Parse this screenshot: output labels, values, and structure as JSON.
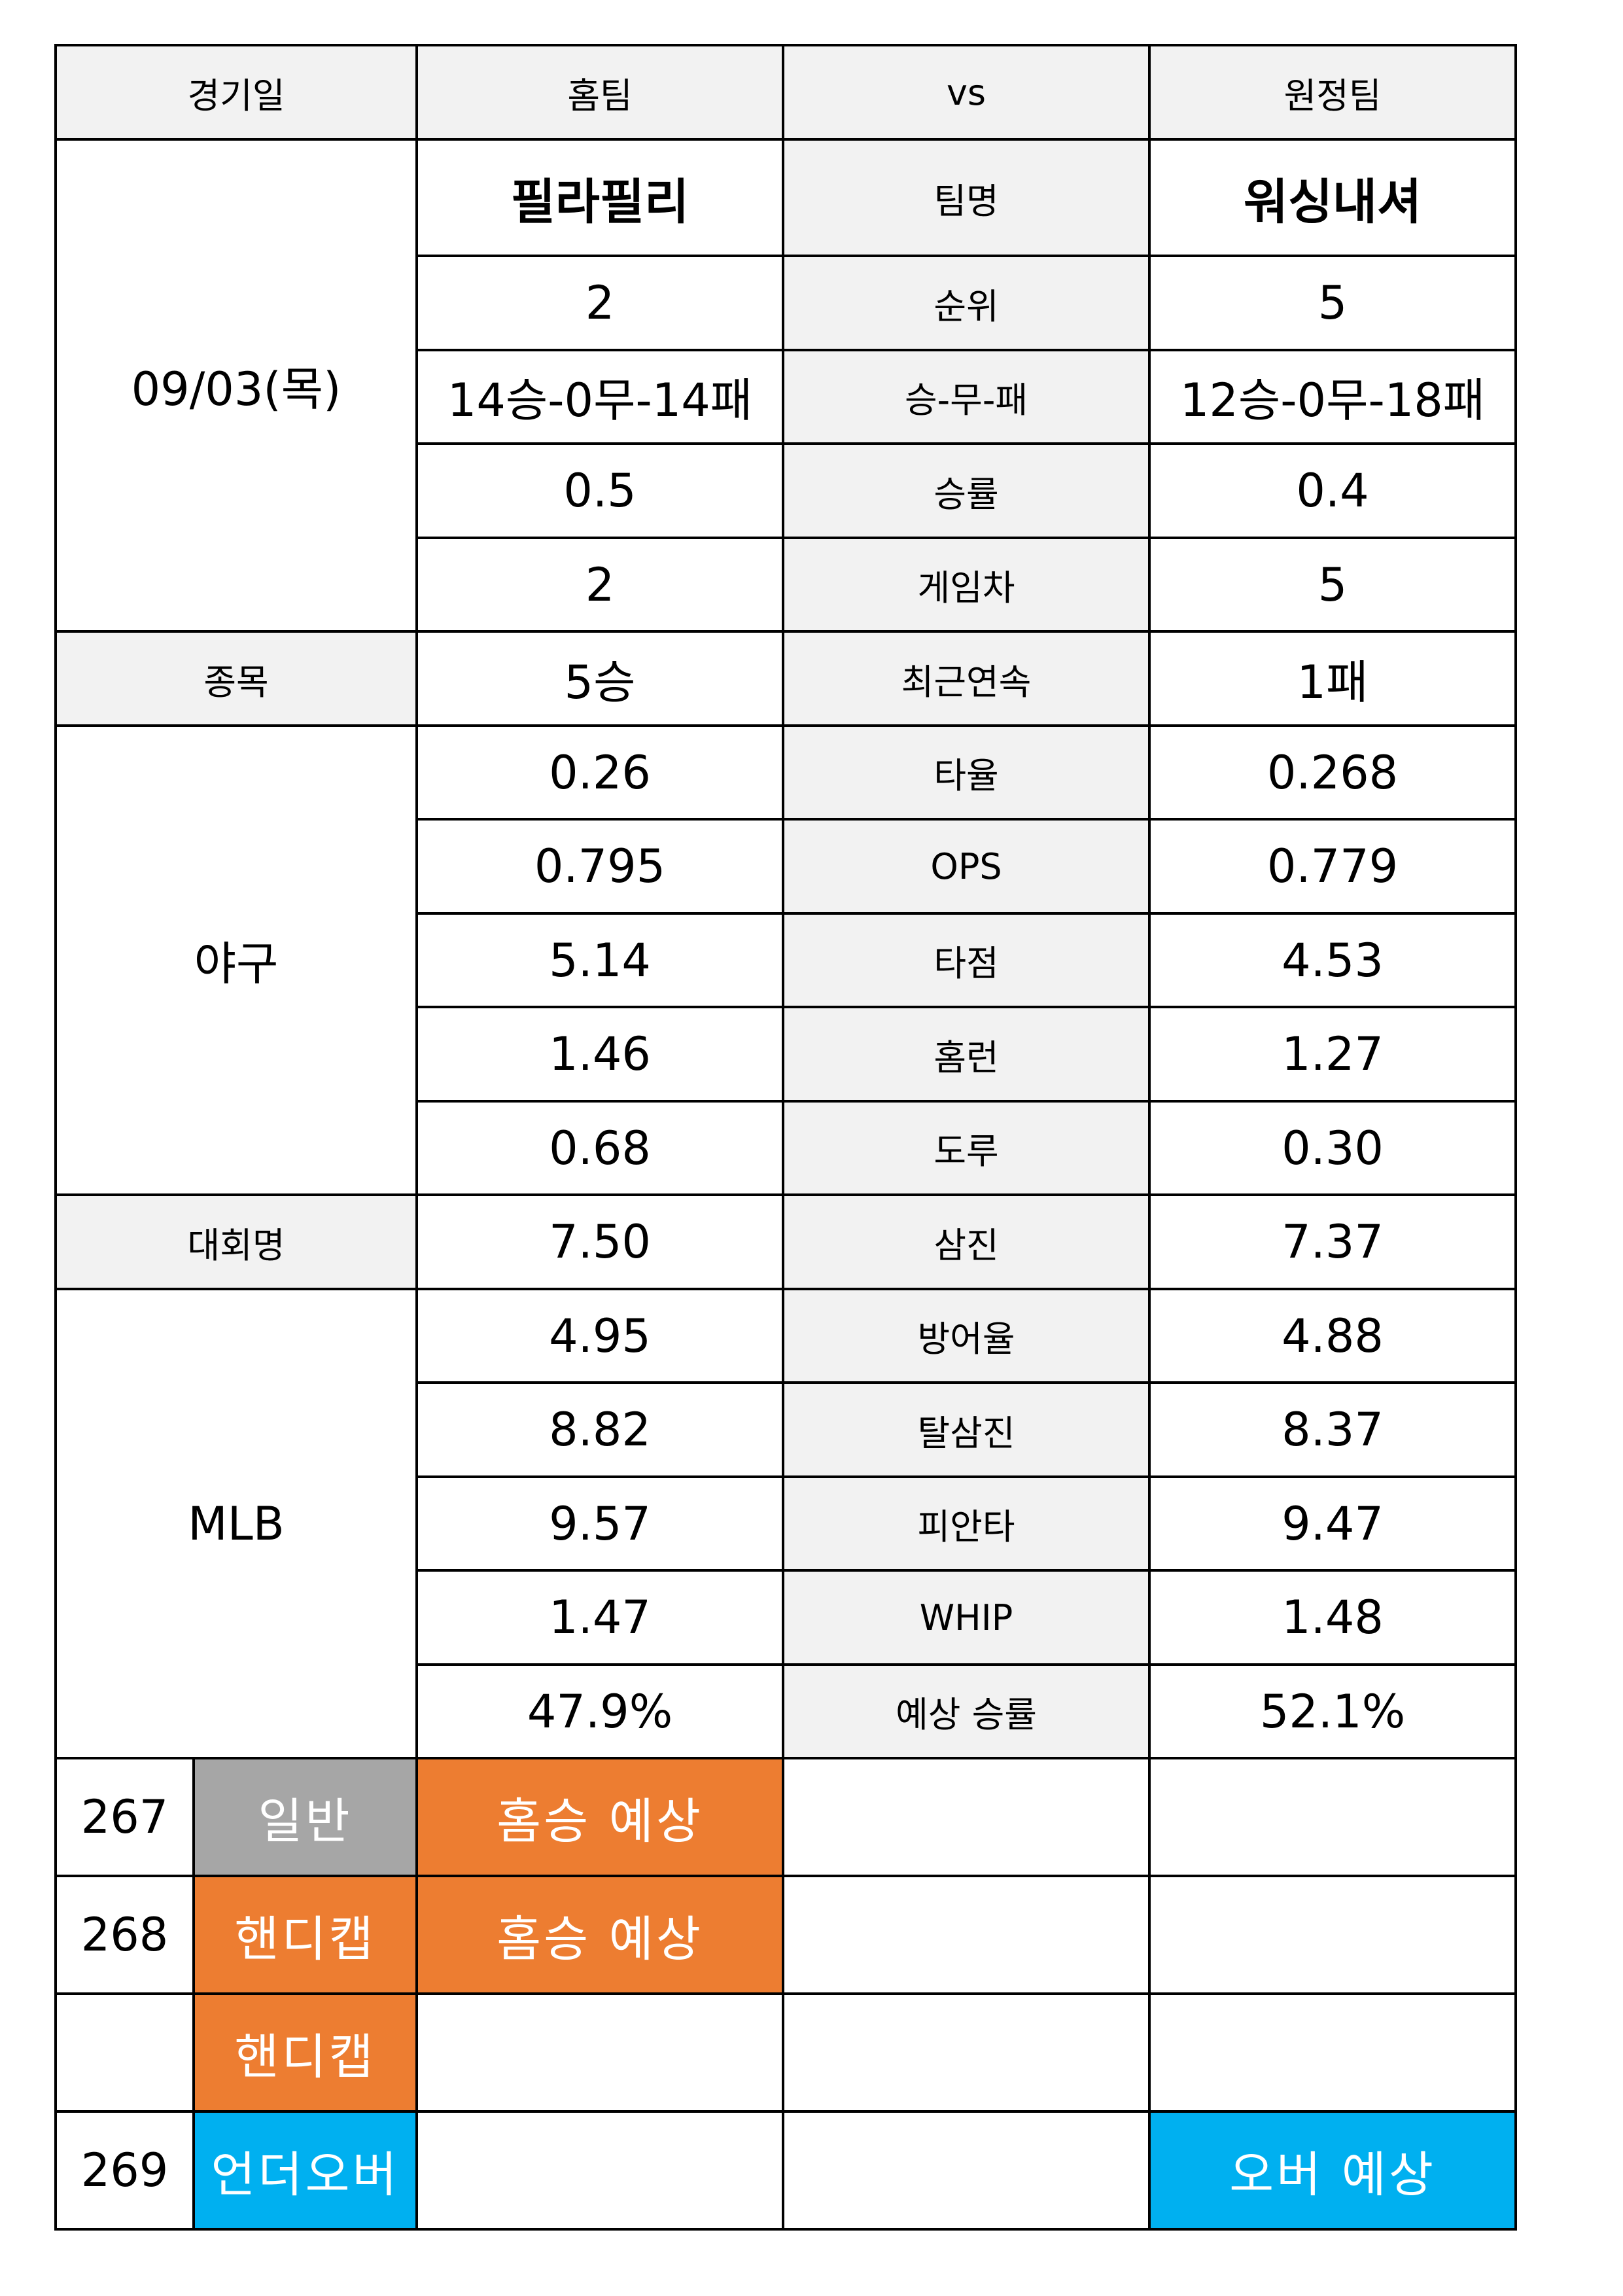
{
  "header": {
    "date_label": "경기일",
    "home_label": "홈팀",
    "vs_label": "vs",
    "away_label": "원정팀"
  },
  "match": {
    "date": "09/03(목)",
    "sport_label": "종목",
    "sport": "야구",
    "league_label": "대회명",
    "league": "MLB"
  },
  "stats": [
    {
      "label": "팀명",
      "home": "필라필리",
      "away": "워싱내셔"
    },
    {
      "label": "순위",
      "home": "2",
      "away": "5"
    },
    {
      "label": "승-무-패",
      "home": "14승-0무-14패",
      "away": "12승-0무-18패"
    },
    {
      "label": "승률",
      "home": "0.5",
      "away": "0.4"
    },
    {
      "label": "게임차",
      "home": "2",
      "away": "5"
    },
    {
      "label": "최근연속",
      "home": "5승",
      "away": "1패"
    },
    {
      "label": "타율",
      "home": "0.26",
      "away": "0.268"
    },
    {
      "label": "OPS",
      "home": "0.795",
      "away": "0.779"
    },
    {
      "label": "타점",
      "home": "5.14",
      "away": "4.53"
    },
    {
      "label": "홈런",
      "home": "1.46",
      "away": "1.27"
    },
    {
      "label": "도루",
      "home": "0.68",
      "away": "0.30"
    },
    {
      "label": "삼진",
      "home": "7.50",
      "away": "7.37"
    },
    {
      "label": "방어율",
      "home": "4.95",
      "away": "4.88"
    },
    {
      "label": "탈삼진",
      "home": "8.82",
      "away": "8.37"
    },
    {
      "label": "피안타",
      "home": "9.57",
      "away": "9.47"
    },
    {
      "label": "WHIP",
      "home": "1.47",
      "away": "1.48"
    },
    {
      "label": "예상 승률",
      "home": "47.9%",
      "away": "52.1%"
    }
  ],
  "picks": [
    {
      "number": "267",
      "type": "일반",
      "type_color": "#a6a6a6",
      "home_pick": "홈승 예상",
      "draw_pick": "",
      "away_pick": ""
    },
    {
      "number": "268",
      "type": "핸디캡",
      "type_color": "#ed7d31",
      "home_pick": "홈승 예상",
      "draw_pick": "",
      "away_pick": ""
    },
    {
      "number": "",
      "type": "핸디캡",
      "type_color": "#ed7d31",
      "home_pick": "",
      "draw_pick": "",
      "away_pick": ""
    },
    {
      "number": "269",
      "type": "언더오버",
      "type_color": "#00b0f0",
      "home_pick": "",
      "draw_pick": "",
      "away_pick": "오버 예상"
    }
  ],
  "colors": {
    "header_bg": "#f2f2f2",
    "orange": "#ed7d31",
    "gray": "#a6a6a6",
    "blue": "#00b0f0"
  }
}
